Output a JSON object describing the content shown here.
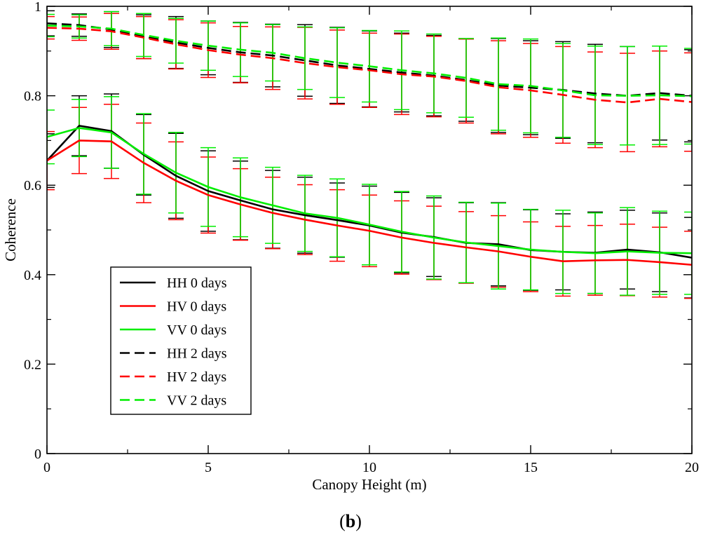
{
  "chart_data": {
    "type": "line",
    "title": "",
    "xlabel": "Canopy Height (m)",
    "ylabel": "Coherence",
    "xlim": [
      0,
      20
    ],
    "ylim": [
      0,
      1
    ],
    "xticks": [
      0,
      5,
      10,
      15,
      20
    ],
    "yticks": [
      0,
      0.2,
      0.4,
      0.6,
      0.8,
      1
    ],
    "xtick_labels": [
      "0",
      "5",
      "10",
      "15",
      "20"
    ],
    "ytick_labels": [
      "0",
      "0.2",
      "0.4",
      "0.6",
      "0.8",
      "1"
    ],
    "legend_position": "bottom-left",
    "panel_label": {
      "open": "(",
      "letter": "b",
      "close": ")"
    },
    "x": [
      0,
      1,
      2,
      3,
      4,
      5,
      6,
      7,
      8,
      9,
      10,
      11,
      12,
      13,
      14,
      15,
      16,
      17,
      18,
      19,
      20
    ],
    "series": [
      {
        "name": "HH 0 days",
        "color": "#000000",
        "dash": "solid",
        "values": [
          0.655,
          0.733,
          0.721,
          0.668,
          0.621,
          0.587,
          0.566,
          0.546,
          0.533,
          0.522,
          0.51,
          0.494,
          0.484,
          0.471,
          0.468,
          0.455,
          0.451,
          0.449,
          0.456,
          0.45,
          0.438
        ],
        "errors": [
          0.06,
          0.067,
          0.083,
          0.09,
          0.095,
          0.09,
          0.088,
          0.087,
          0.085,
          0.083,
          0.088,
          0.09,
          0.088,
          0.09,
          0.093,
          0.09,
          0.085,
          0.091,
          0.088,
          0.088,
          0.09
        ]
      },
      {
        "name": "HV 0 days",
        "color": "#ff0000",
        "dash": "solid",
        "values": [
          0.655,
          0.7,
          0.698,
          0.65,
          0.61,
          0.578,
          0.557,
          0.538,
          0.523,
          0.51,
          0.498,
          0.483,
          0.471,
          0.461,
          0.452,
          0.44,
          0.43,
          0.432,
          0.433,
          0.428,
          0.422
        ],
        "errors": [
          0.065,
          0.074,
          0.083,
          0.089,
          0.087,
          0.085,
          0.08,
          0.08,
          0.078,
          0.08,
          0.08,
          0.082,
          0.082,
          0.08,
          0.08,
          0.078,
          0.078,
          0.078,
          0.08,
          0.078,
          0.075
        ]
      },
      {
        "name": "VV 0 days",
        "color": "#00ee00",
        "dash": "solid",
        "values": [
          0.708,
          0.728,
          0.718,
          0.67,
          0.628,
          0.596,
          0.573,
          0.555,
          0.537,
          0.527,
          0.512,
          0.496,
          0.483,
          0.472,
          0.464,
          0.456,
          0.451,
          0.448,
          0.452,
          0.449,
          0.448
        ],
        "errors": [
          0.06,
          0.064,
          0.08,
          0.09,
          0.09,
          0.088,
          0.088,
          0.085,
          0.085,
          0.087,
          0.09,
          0.09,
          0.093,
          0.09,
          0.096,
          0.09,
          0.093,
          0.09,
          0.098,
          0.093,
          0.092
        ]
      },
      {
        "name": "HH 2 days",
        "color": "#000000",
        "dash": "dashed",
        "values": [
          0.962,
          0.958,
          0.948,
          0.932,
          0.919,
          0.907,
          0.897,
          0.89,
          0.879,
          0.868,
          0.86,
          0.852,
          0.845,
          0.835,
          0.823,
          0.818,
          0.813,
          0.805,
          0.8,
          0.806,
          0.8
        ],
        "errors": [
          0.028,
          0.025,
          0.04,
          0.049,
          0.058,
          0.06,
          0.067,
          0.07,
          0.08,
          0.085,
          0.085,
          0.088,
          0.09,
          0.092,
          0.105,
          0.105,
          0.108,
          0.11,
          0.11,
          0.105,
          0.103
        ]
      },
      {
        "name": "HV 2 days",
        "color": "#ff0000",
        "dash": "dashed",
        "values": [
          0.952,
          0.95,
          0.944,
          0.93,
          0.915,
          0.902,
          0.892,
          0.884,
          0.873,
          0.864,
          0.857,
          0.848,
          0.843,
          0.833,
          0.819,
          0.812,
          0.802,
          0.791,
          0.785,
          0.793,
          0.786
        ],
        "errors": [
          0.025,
          0.026,
          0.04,
          0.047,
          0.055,
          0.061,
          0.063,
          0.07,
          0.08,
          0.083,
          0.083,
          0.09,
          0.09,
          0.094,
          0.104,
          0.105,
          0.108,
          0.107,
          0.11,
          0.107,
          0.11
        ]
      },
      {
        "name": "VV 2 days",
        "color": "#00ee00",
        "dash": "dashed",
        "values": [
          0.957,
          0.955,
          0.95,
          0.936,
          0.923,
          0.912,
          0.903,
          0.896,
          0.884,
          0.874,
          0.866,
          0.857,
          0.85,
          0.84,
          0.826,
          0.822,
          0.812,
          0.801,
          0.8,
          0.801,
          0.799
        ],
        "errors": [
          0.025,
          0.026,
          0.038,
          0.048,
          0.05,
          0.055,
          0.06,
          0.063,
          0.07,
          0.078,
          0.08,
          0.088,
          0.088,
          0.088,
          0.103,
          0.105,
          0.105,
          0.11,
          0.11,
          0.11,
          0.107
        ]
      }
    ]
  }
}
